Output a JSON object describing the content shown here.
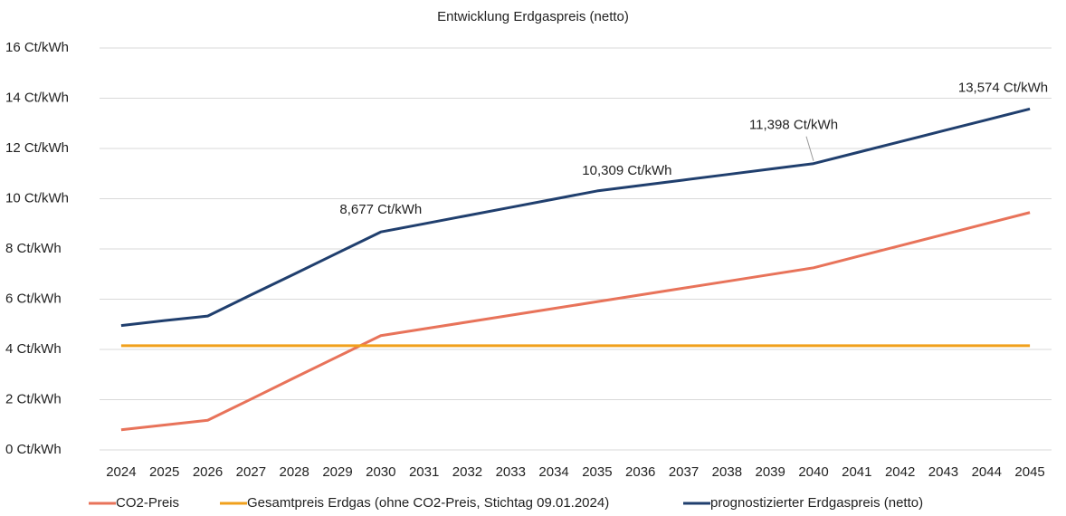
{
  "chart_data": {
    "type": "line",
    "title": "Entwicklung Erdgaspreis (netto)",
    "categories": [
      "2024",
      "2025",
      "2026",
      "2027",
      "2028",
      "2029",
      "2030",
      "2031",
      "2032",
      "2033",
      "2034",
      "2035",
      "2036",
      "2037",
      "2038",
      "2039",
      "2040",
      "2041",
      "2042",
      "2043",
      "2044",
      "2045"
    ],
    "series": [
      {
        "name": "CO2-Preis",
        "color": "#e8735a",
        "values": [
          0.8,
          0.99,
          1.18,
          2.02,
          2.87,
          3.71,
          4.55,
          4.82,
          5.09,
          5.36,
          5.63,
          5.9,
          6.17,
          6.44,
          6.71,
          6.98,
          7.25,
          7.69,
          8.13,
          8.57,
          9.01,
          9.45
        ]
      },
      {
        "name": "Gesamtpreis Erdgas (ohne CO2-Preis, Stichtag 09.01.2024)",
        "color": "#f0a01c",
        "values": [
          4.15,
          4.15,
          4.15,
          4.15,
          4.15,
          4.15,
          4.15,
          4.15,
          4.15,
          4.15,
          4.15,
          4.15,
          4.15,
          4.15,
          4.15,
          4.15,
          4.15,
          4.15,
          4.15,
          4.15,
          4.15,
          4.15
        ]
      },
      {
        "name": "prognostizierter Erdgaspreis (netto)",
        "color": "#203f6e",
        "values": [
          4.95,
          5.15,
          5.33,
          6.17,
          7.0,
          7.84,
          8.677,
          9.003,
          9.33,
          9.656,
          9.982,
          10.309,
          10.527,
          10.745,
          10.962,
          11.18,
          11.398,
          11.833,
          12.268,
          12.704,
          13.139,
          13.574
        ],
        "value_labels": [
          null,
          null,
          null,
          null,
          null,
          null,
          "8,677 Ct/kWh",
          null,
          null,
          null,
          null,
          "10,309 Ct/kWh",
          null,
          null,
          null,
          null,
          "11,398 Ct/kWh",
          null,
          null,
          null,
          null,
          "13,574 Ct/kWh"
        ]
      }
    ],
    "ylim": [
      0,
      16
    ],
    "yticks": [
      {
        "value": 0,
        "label": "0 Ct/kWh"
      },
      {
        "value": 2,
        "label": "2 Ct/kWh"
      },
      {
        "value": 4,
        "label": "4 Ct/kWh"
      },
      {
        "value": 6,
        "label": "6 Ct/kWh"
      },
      {
        "value": 8,
        "label": "8 Ct/kWh"
      },
      {
        "value": 10,
        "label": "10 Ct/kWh"
      },
      {
        "value": 12,
        "label": "12 Ct/kWh"
      },
      {
        "value": 14,
        "label": "14 Ct/kWh"
      },
      {
        "value": 16,
        "label": "16 Ct/kWh"
      }
    ],
    "grid": true,
    "legend": "bottom"
  }
}
